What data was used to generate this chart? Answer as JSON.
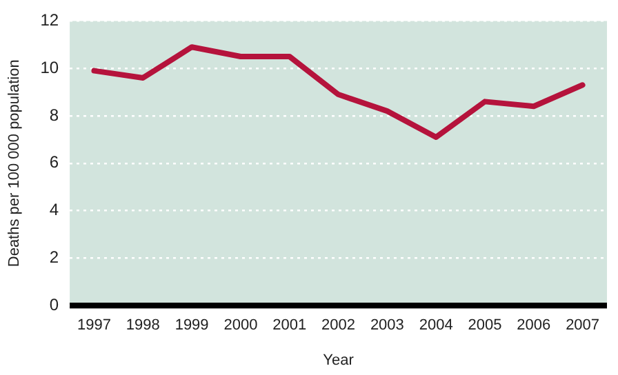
{
  "chart_data": {
    "type": "line",
    "xlabel": "Year",
    "ylabel": "Deaths per 100 000 population",
    "categories": [
      "1997",
      "1998",
      "1999",
      "2000",
      "2001",
      "2002",
      "2003",
      "2004",
      "2005",
      "2006",
      "2007"
    ],
    "series": [
      {
        "color": "#b5133c",
        "values": [
          9.9,
          9.6,
          10.9,
          10.5,
          10.5,
          8.9,
          8.2,
          7.1,
          8.6,
          8.4,
          9.3
        ]
      }
    ],
    "ylim": [
      0,
      12
    ],
    "yticks": [
      0,
      2,
      4,
      6,
      8,
      10,
      12
    ],
    "grid": "y",
    "legend": false,
    "marker": "none",
    "line_style": "solid"
  }
}
